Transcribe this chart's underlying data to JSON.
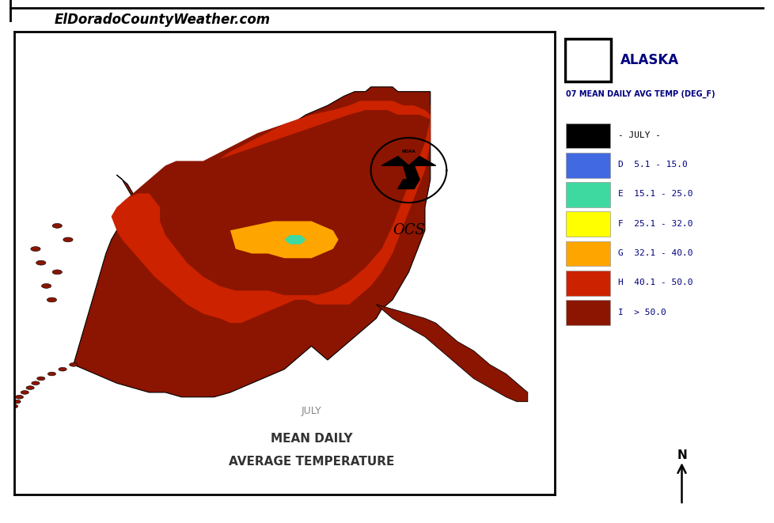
{
  "title_website": "ElDoradoCountyWeather.com",
  "map_title_line1": "JULY",
  "map_title_line2": "MEAN DAILY",
  "map_title_line3": "AVERAGE TEMPERATURE",
  "legend_title_alaska": "ALASKA",
  "legend_subtitle": "07 MEAN DAILY AVG TEMP (DEG_F)",
  "legend_entries": [
    {
      "label": "- JULY -",
      "color": "#000000"
    },
    {
      "label": "D  5.1 - 15.0",
      "color": "#4169E1"
    },
    {
      "label": "E  15.1 - 25.0",
      "color": "#3ED9A0"
    },
    {
      "label": "F  25.1 - 32.0",
      "color": "#FFFF00"
    },
    {
      "label": "G  32.1 - 40.0",
      "color": "#FFA500"
    },
    {
      "label": "H  40.1 - 50.0",
      "color": "#CC2200"
    },
    {
      "label": "I  > 50.0",
      "color": "#8B1500"
    }
  ],
  "color_inland_dark": "#8B1500",
  "color_coastal_red": "#CC2200",
  "color_orange": "#FFA500",
  "color_yellow": "#FFFF00",
  "color_teal": "#3ED9A0",
  "color_black": "#000000",
  "header_text": "ElDoradoCountyWeather.com",
  "bg_color": "#FFFFFF",
  "map_box_color": "#000000"
}
